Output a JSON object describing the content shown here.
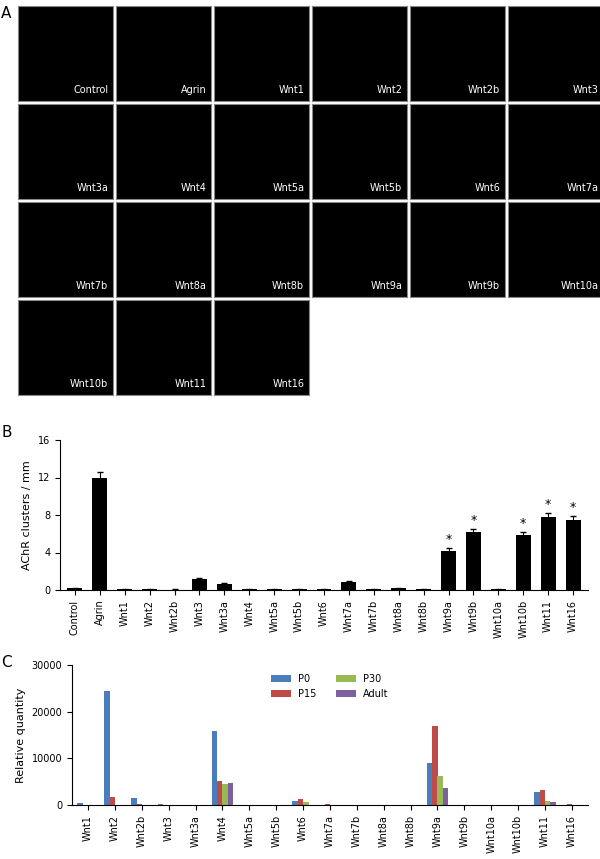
{
  "panel_labels": [
    "A",
    "B",
    "C"
  ],
  "image_grid": {
    "labels": [
      "Control",
      "Agrin",
      "Wnt1",
      "Wnt2",
      "Wnt2b",
      "Wnt3",
      "Wnt3a",
      "Wnt4",
      "Wnt5a",
      "Wnt5b",
      "Wnt6",
      "Wnt7a",
      "Wnt7b",
      "Wnt8a",
      "Wnt8b",
      "Wnt9a",
      "Wnt9b",
      "Wnt10a",
      "Wnt10b",
      "Wnt11",
      "Wnt16"
    ]
  },
  "chart_data": [
    {
      "type": "bar",
      "y_label": "AChR clusters / mm",
      "categories": [
        "Control",
        "Agrin",
        "Wnt1",
        "Wnt2",
        "Wnt2b",
        "Wnt3",
        "Wnt3a",
        "Wnt4",
        "Wnt5a",
        "Wnt5b",
        "Wnt6",
        "Wnt7a",
        "Wnt7b",
        "Wnt8a",
        "Wnt8b",
        "Wnt9a",
        "Wnt9b",
        "Wnt10a",
        "Wnt10b",
        "Wnt11",
        "Wnt16"
      ],
      "values": [
        0.2,
        12,
        0.1,
        0.1,
        0.05,
        1.2,
        0.6,
        0.1,
        0.1,
        0.1,
        0.1,
        0.9,
        0.1,
        0.2,
        0.1,
        4.2,
        6.2,
        0.1,
        5.9,
        7.8,
        7.5
      ],
      "errors": [
        0.05,
        0.6,
        0.05,
        0.05,
        0.05,
        0.1,
        0.1,
        0.05,
        0.05,
        0.05,
        0.05,
        0.1,
        0.05,
        0.05,
        0.05,
        0.3,
        0.3,
        0.05,
        0.3,
        0.4,
        0.4
      ],
      "annotations": [
        {
          "category": "Wnt9a",
          "text": "*"
        },
        {
          "category": "Wnt9b",
          "text": "*"
        },
        {
          "category": "Wnt10b",
          "text": "*"
        },
        {
          "category": "Wnt11",
          "text": "*"
        },
        {
          "category": "Wnt16",
          "text": "*"
        }
      ],
      "color": "#000000",
      "ylim": [
        0,
        16
      ],
      "yticks": [
        0,
        4,
        8,
        12,
        16
      ]
    },
    {
      "type": "bar",
      "y_label": "Relative quantity",
      "legend": "upper center",
      "categories": [
        "Wnt1",
        "Wnt2",
        "Wnt2b",
        "Wnt3",
        "Wnt3a",
        "Wnt4",
        "Wnt5a",
        "Wnt5b",
        "Wnt6",
        "Wnt7a",
        "Wnt7b",
        "Wnt8a",
        "Wnt8b",
        "Wnt9a",
        "Wnt9b",
        "Wnt10a",
        "Wnt10b",
        "Wnt11",
        "Wnt16"
      ],
      "series": [
        {
          "name": "P0",
          "color": "#4a7ebb",
          "values": [
            400,
            24400,
            1500,
            300,
            0,
            15800,
            0,
            0,
            800,
            0,
            0,
            0,
            0,
            8900,
            0,
            0,
            0,
            2700,
            0
          ]
        },
        {
          "name": "P15",
          "color": "#be4b48",
          "values": [
            0,
            1800,
            300,
            50,
            0,
            5100,
            0,
            0,
            1300,
            200,
            0,
            0,
            0,
            16900,
            0,
            0,
            0,
            3200,
            200
          ]
        },
        {
          "name": "P30",
          "color": "#98b954",
          "values": [
            0,
            100,
            50,
            0,
            0,
            4600,
            0,
            0,
            600,
            0,
            0,
            0,
            0,
            6200,
            0,
            0,
            0,
            800,
            100
          ]
        },
        {
          "name": "Adult",
          "color": "#7d60a0",
          "values": [
            0,
            100,
            50,
            0,
            0,
            4700,
            0,
            0,
            100,
            0,
            0,
            0,
            0,
            3600,
            0,
            0,
            0,
            700,
            0
          ]
        }
      ],
      "ylim": [
        0,
        30000
      ],
      "yticks": [
        0,
        10000,
        20000,
        30000
      ]
    }
  ]
}
